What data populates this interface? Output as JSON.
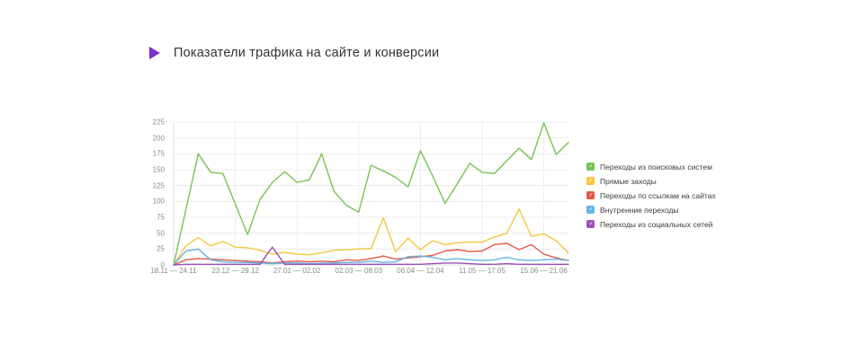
{
  "header": {
    "title": "Показатели трафика на сайте и конверсии",
    "icon_color": "#7a2fd0"
  },
  "legend": {
    "check_glyph": "✓"
  },
  "chart_data": {
    "type": "line",
    "title": "Показатели трафика на сайте и конверсии",
    "xlabel": "",
    "ylabel": "",
    "ylim": [
      0,
      225
    ],
    "y_step": 25,
    "grid": true,
    "legend_position": "right",
    "n_points": 33,
    "x_tick_weeks": [
      0,
      5,
      10,
      15,
      20,
      25,
      30
    ],
    "x_labels": [
      "18.11 — 24.11",
      "23.12 — 29.12",
      "27.01 — 02.02",
      "02.03 — 08.03",
      "06.04 — 12.04",
      "11.05 — 17.05",
      "15.06 — 21.06"
    ],
    "grid_color": "#ececec",
    "axis_color": "#dcdcdc",
    "series": [
      {
        "name": "Переходы из поисковых систем",
        "color": "#77c353",
        "values": [
          0,
          87,
          175,
          146,
          144,
          96,
          48,
          103,
          130,
          147,
          130,
          134,
          175,
          116,
          94,
          83,
          157,
          148,
          138,
          123,
          180,
          140,
          97,
          128,
          160,
          146,
          144,
          164,
          184,
          166,
          224,
          174,
          193
        ]
      },
      {
        "name": "Прямые заходы",
        "color": "#f5c642",
        "values": [
          0,
          30,
          43,
          30,
          37,
          28,
          27,
          23,
          17,
          20,
          17,
          16,
          19,
          23,
          24,
          25,
          26,
          74,
          21,
          42,
          24,
          38,
          32,
          35,
          36,
          36,
          44,
          50,
          88,
          45,
          49,
          38,
          19
        ]
      },
      {
        "name": "Переходы по ссылкам на сайтах",
        "color": "#e4584a",
        "values": [
          0,
          8,
          10,
          9,
          8,
          7,
          6,
          5,
          3,
          5,
          6,
          5,
          6,
          5,
          8,
          7,
          10,
          14,
          9,
          11,
          13,
          15,
          22,
          24,
          21,
          22,
          32,
          34,
          24,
          32,
          17,
          11,
          7
        ]
      },
      {
        "name": "Внутренние переходы",
        "color": "#62b5e5",
        "values": [
          0,
          22,
          25,
          8,
          5,
          4,
          4,
          3,
          2,
          3,
          3,
          2,
          3,
          3,
          4,
          4,
          6,
          4,
          5,
          13,
          14,
          12,
          8,
          10,
          8,
          7,
          8,
          12,
          8,
          7,
          8,
          9,
          7
        ]
      },
      {
        "name": "Переходы из социальных сетей",
        "color": "#9b51bb",
        "values": [
          0,
          1,
          1,
          1,
          1,
          1,
          1,
          1,
          28,
          1,
          1,
          1,
          1,
          1,
          1,
          1,
          1,
          1,
          1,
          1,
          1,
          2,
          3,
          3,
          2,
          1,
          1,
          2,
          1,
          1,
          1,
          1,
          1
        ]
      }
    ]
  }
}
